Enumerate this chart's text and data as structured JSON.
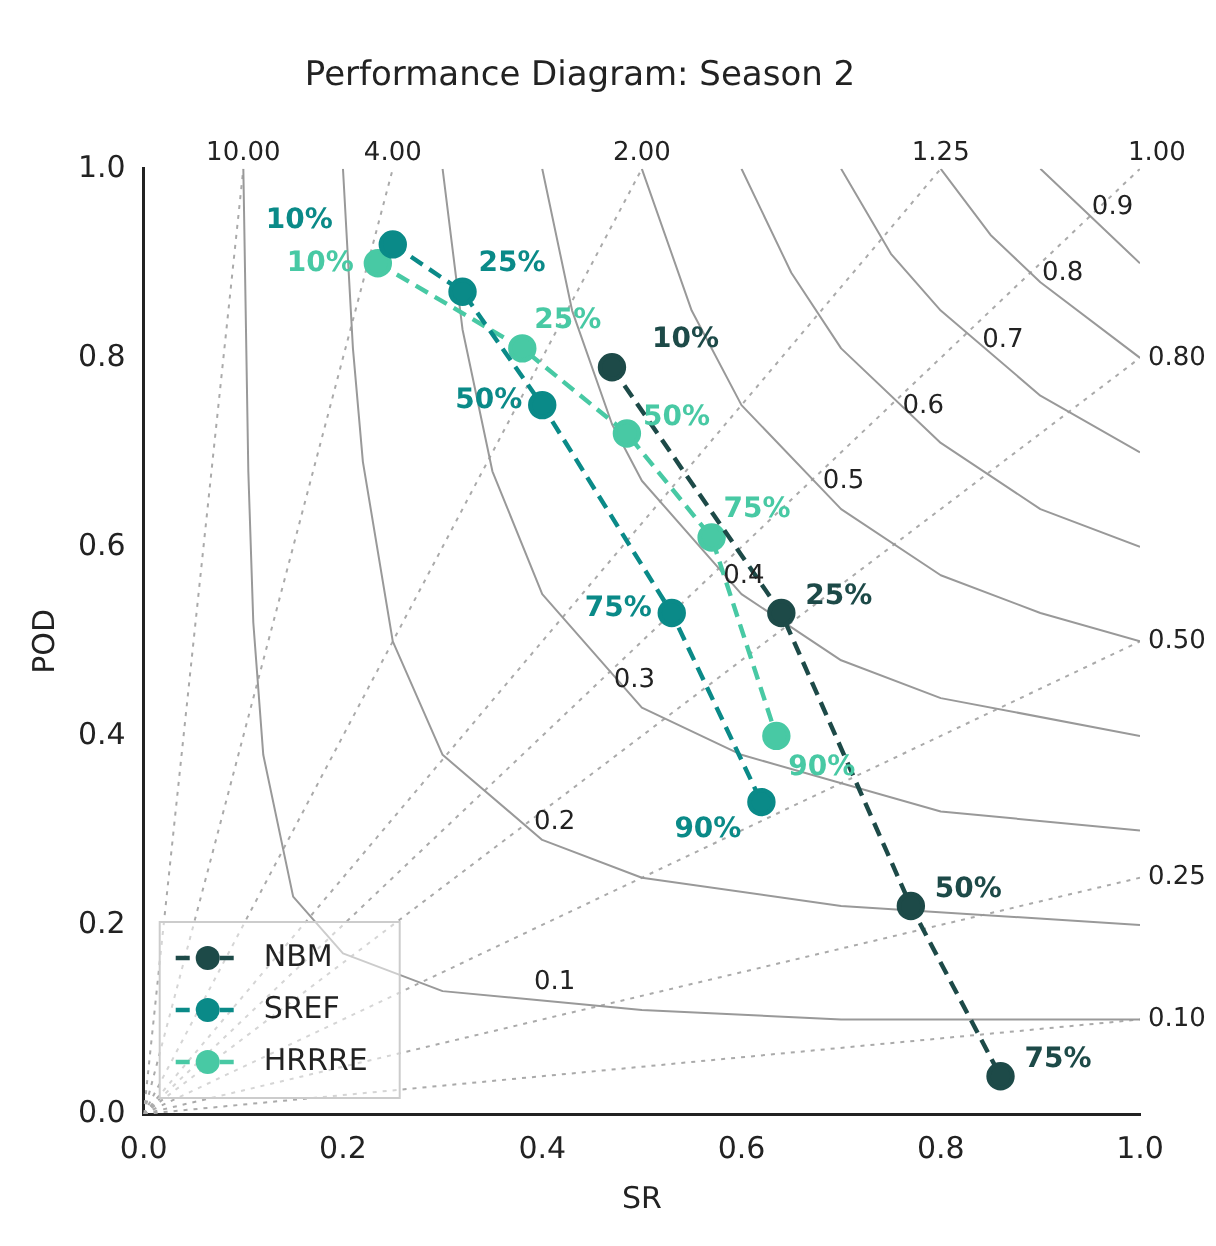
{
  "chart_data": {
    "type": "line",
    "title": "Performance Diagram: Season 2",
    "xlabel": "SR",
    "ylabel": "POD",
    "xlim": [
      0,
      1
    ],
    "ylim": [
      0,
      1
    ],
    "xticks": [
      {
        "value": 0,
        "label": "0.0"
      },
      0.2,
      0.4,
      0.6,
      0.8,
      {
        "value": 1,
        "label": "1.0"
      }
    ],
    "yticks": [
      {
        "value": 0,
        "label": "0.0"
      },
      0.2,
      0.4,
      0.6,
      0.8,
      {
        "value": 1,
        "label": "1.0"
      }
    ],
    "grid": false,
    "legend": "bottom left",
    "marker": "circle",
    "line_style": "dashed",
    "series": [
      {
        "name": "NBM",
        "color": "#1d4a48",
        "x": [
          0.47,
          0.64,
          0.77,
          0.86
        ],
        "values": [
          0.79,
          0.53,
          0.22,
          0.04
        ]
      },
      {
        "name": "SREF",
        "color": "#0a8a88",
        "x": [
          0.25,
          0.32,
          0.4,
          0.53,
          0.62
        ],
        "values": [
          0.92,
          0.87,
          0.75,
          0.53,
          0.33
        ]
      },
      {
        "name": "HRRRE",
        "color": "#48c9a4",
        "x": [
          0.235,
          0.38,
          0.485,
          0.57,
          0.635
        ],
        "values": [
          0.9,
          0.81,
          0.72,
          0.61,
          0.4
        ]
      },
      {
        "color": "#999999",
        "line_style": "solid",
        "marker": "none",
        "x": [
          0.1,
          0.105,
          0.11,
          0.12,
          0.15,
          0.2,
          0.3,
          0.5,
          0.7,
          1
        ],
        "values": [
          1,
          0.68,
          0.52,
          0.38,
          0.23,
          0.17,
          0.13,
          0.11,
          0.1,
          0.1
        ]
      },
      {
        "color": "#999999",
        "line_style": "solid",
        "marker": "none",
        "x": [
          0.2,
          0.21,
          0.22,
          0.25,
          0.3,
          0.4,
          0.5,
          0.7,
          1
        ],
        "values": [
          1,
          0.81,
          0.69,
          0.5,
          0.38,
          0.29,
          0.25,
          0.22,
          0.2
        ]
      },
      {
        "color": "#999999",
        "line_style": "solid",
        "marker": "none",
        "x": [
          0.3,
          0.32,
          0.35,
          0.4,
          0.5,
          0.6,
          0.8,
          1
        ],
        "values": [
          1,
          0.83,
          0.68,
          0.55,
          0.43,
          0.38,
          0.32,
          0.3
        ]
      },
      {
        "color": "#999999",
        "line_style": "solid",
        "marker": "none",
        "x": [
          0.4,
          0.43,
          0.47,
          0.5,
          0.6,
          0.7,
          0.8,
          1
        ],
        "values": [
          1,
          0.85,
          0.73,
          0.67,
          0.55,
          0.48,
          0.44,
          0.4
        ]
      },
      {
        "color": "#999999",
        "line_style": "solid",
        "marker": "none",
        "x": [
          0.5,
          0.55,
          0.6,
          0.7,
          0.8,
          0.9,
          1
        ],
        "values": [
          1,
          0.85,
          0.75,
          0.64,
          0.57,
          0.53,
          0.5
        ]
      },
      {
        "color": "#999999",
        "line_style": "solid",
        "marker": "none",
        "x": [
          0.6,
          0.65,
          0.7,
          0.8,
          0.9,
          1
        ],
        "values": [
          1,
          0.89,
          0.81,
          0.71,
          0.64,
          0.6
        ]
      },
      {
        "color": "#999999",
        "line_style": "solid",
        "marker": "none",
        "x": [
          0.7,
          0.75,
          0.8,
          0.9,
          1
        ],
        "values": [
          1,
          0.91,
          0.85,
          0.76,
          0.7
        ]
      },
      {
        "color": "#999999",
        "line_style": "solid",
        "marker": "none",
        "x": [
          0.8,
          0.85,
          0.9,
          1
        ],
        "values": [
          1,
          0.93,
          0.88,
          0.8
        ]
      },
      {
        "color": "#999999",
        "line_style": "solid",
        "marker": "none",
        "x": [
          0.9,
          0.95,
          1
        ],
        "values": [
          1,
          0.95,
          0.9
        ]
      },
      {
        "color": "#aaaaaa",
        "line_style": "dotted",
        "marker": "none",
        "x": [
          0,
          0.1
        ],
        "values": [
          0,
          1
        ]
      },
      {
        "color": "#aaaaaa",
        "line_style": "dotted",
        "marker": "none",
        "x": [
          0,
          0.25
        ],
        "values": [
          0,
          1
        ]
      },
      {
        "color": "#aaaaaa",
        "line_style": "dotted",
        "marker": "none",
        "x": [
          0,
          0.5
        ],
        "values": [
          0,
          1
        ]
      },
      {
        "color": "#aaaaaa",
        "line_style": "dotted",
        "marker": "none",
        "x": [
          0,
          0.8
        ],
        "values": [
          0,
          1
        ]
      },
      {
        "color": "#aaaaaa",
        "line_style": "dotted",
        "marker": "none",
        "x": [
          0,
          1
        ],
        "values": [
          0,
          1
        ]
      },
      {
        "color": "#aaaaaa",
        "line_style": "dotted",
        "marker": "none",
        "x": [
          0,
          1
        ],
        "values": [
          0,
          0.8
        ]
      },
      {
        "color": "#aaaaaa",
        "line_style": "dotted",
        "marker": "none",
        "x": [
          0,
          1
        ],
        "values": [
          0,
          0.5
        ]
      },
      {
        "color": "#aaaaaa",
        "line_style": "dotted",
        "marker": "none",
        "x": [
          0,
          1
        ],
        "values": [
          0,
          0.25
        ]
      },
      {
        "color": "#aaaaaa",
        "line_style": "dotted",
        "marker": "none",
        "x": [
          0,
          1
        ],
        "values": [
          0,
          0.1
        ]
      }
    ],
    "annotations": [
      {
        "text": "10%",
        "x": 0.47,
        "y": 0.79
      },
      {
        "text": "25%",
        "x": 0.64,
        "y": 0.53
      },
      {
        "text": "50%",
        "x": 0.77,
        "y": 0.22
      },
      {
        "text": "75%",
        "x": 0.86,
        "y": 0.04
      },
      {
        "text": "10%",
        "x": 0.25,
        "y": 0.92
      },
      {
        "text": "25%",
        "x": 0.32,
        "y": 0.87
      },
      {
        "text": "50%",
        "x": 0.4,
        "y": 0.75
      },
      {
        "text": "75%",
        "x": 0.53,
        "y": 0.53
      },
      {
        "text": "90%",
        "x": 0.62,
        "y": 0.33
      },
      {
        "text": "10%",
        "x": 0.235,
        "y": 0.9
      },
      {
        "text": "25%",
        "x": 0.38,
        "y": 0.81
      },
      {
        "text": "50%",
        "x": 0.485,
        "y": 0.72
      },
      {
        "text": "75%",
        "x": 0.57,
        "y": 0.61
      },
      {
        "text": "90%",
        "x": 0.635,
        "y": 0.4
      },
      {
        "text": "0.1",
        "x": 0.4,
        "y": 0.12
      },
      {
        "text": "0.2",
        "x": 0.4,
        "y": 0.29
      },
      {
        "text": "0.3",
        "x": 0.48,
        "y": 0.44
      },
      {
        "text": "0.4",
        "x": 0.59,
        "y": 0.55
      },
      {
        "text": "0.5",
        "x": 0.69,
        "y": 0.65
      },
      {
        "text": "0.6",
        "x": 0.77,
        "y": 0.73
      },
      {
        "text": "0.7",
        "x": 0.85,
        "y": 0.8
      },
      {
        "text": "0.8",
        "x": 0.91,
        "y": 0.87
      },
      {
        "text": "0.9",
        "x": 0.96,
        "y": 0.94
      },
      {
        "text": "10.00",
        "x": 0.1,
        "y": 1
      },
      {
        "text": "4.00",
        "x": 0.25,
        "y": 1
      },
      {
        "text": "2.00",
        "x": 0.5,
        "y": 1
      },
      {
        "text": "1.25",
        "x": 0.8,
        "y": 1
      },
      {
        "text": "1.00",
        "x": 1,
        "y": 1
      },
      {
        "text": "0.80",
        "x": 1,
        "y": 0.8
      },
      {
        "text": "0.50",
        "x": 1,
        "y": 0.5
      },
      {
        "text": "0.25",
        "x": 1,
        "y": 0.25
      },
      {
        "text": "0.10",
        "x": 1,
        "y": 0.1
      }
    ]
  }
}
